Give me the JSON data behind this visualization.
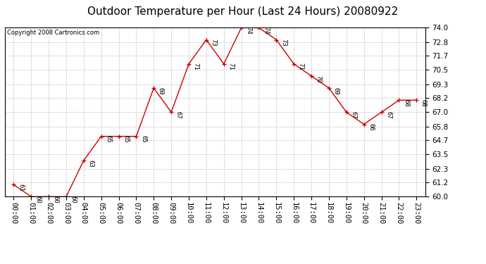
{
  "title": "Outdoor Temperature per Hour (Last 24 Hours) 20080922",
  "copyright": "Copyright 2008 Cartronics.com",
  "hours": [
    "00:00",
    "01:00",
    "02:00",
    "03:00",
    "04:00",
    "05:00",
    "06:00",
    "07:00",
    "08:00",
    "09:00",
    "10:00",
    "11:00",
    "12:00",
    "13:00",
    "14:00",
    "15:00",
    "16:00",
    "17:00",
    "18:00",
    "19:00",
    "20:00",
    "21:00",
    "22:00",
    "23:00"
  ],
  "temps": [
    61,
    60,
    60,
    60,
    63,
    65,
    65,
    65,
    69,
    67,
    71,
    73,
    71,
    74,
    74,
    73,
    71,
    70,
    69,
    67,
    66,
    67,
    68,
    68
  ],
  "line_color": "#cc0000",
  "marker_color": "#cc0000",
  "bg_color": "#ffffff",
  "grid_color": "#c0c0c0",
  "ylim_min": 60.0,
  "ylim_max": 74.0,
  "yticks": [
    60.0,
    61.2,
    62.3,
    63.5,
    64.7,
    65.8,
    67.0,
    68.2,
    69.3,
    70.5,
    71.7,
    72.8,
    74.0
  ],
  "title_fontsize": 11,
  "label_fontsize": 6.5,
  "copyright_fontsize": 6,
  "tick_fontsize": 7.5
}
